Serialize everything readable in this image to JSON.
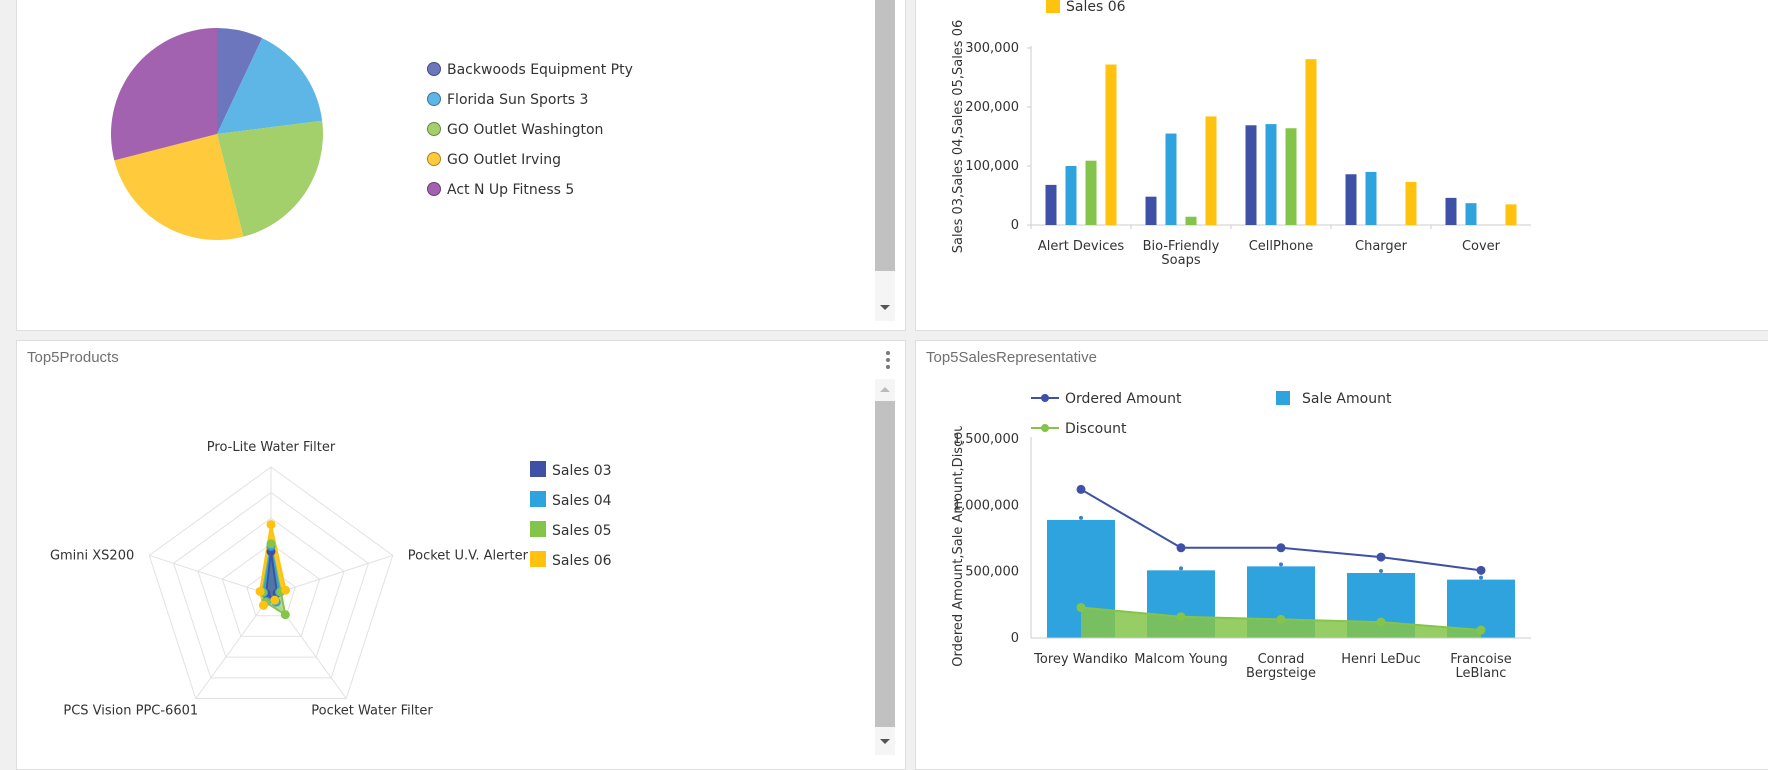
{
  "colors": {
    "sales03": "#3f51a6",
    "sales04": "#2fa3dd",
    "sales05": "#84c44a",
    "sales06": "#ffc20e",
    "pie": [
      "#6b76bd",
      "#5db6e6",
      "#a3d06a",
      "#ffcb3d",
      "#a262b0"
    ]
  },
  "pie_panel": {
    "legend": [
      {
        "label": "Backwoods Equipment Pty",
        "color": "#6b76bd"
      },
      {
        "label": "Florida Sun Sports 3",
        "color": "#5db6e6"
      },
      {
        "label": "GO Outlet Washington",
        "color": "#a3d06a"
      },
      {
        "label": "GO Outlet Irving",
        "color": "#ffcb3d"
      },
      {
        "label": "Act N Up Fitness 5",
        "color": "#a262b0"
      }
    ]
  },
  "bar_panel": {
    "legend_partial": "Sales 06"
  },
  "radar_panel": {
    "title": "Top5Products",
    "legend": [
      "Sales 03",
      "Sales 04",
      "Sales 05",
      "Sales 06"
    ]
  },
  "combo_panel": {
    "title": "Top5SalesRepresentative",
    "legend": [
      "Ordered Amount",
      "Sale Amount",
      "Discount"
    ]
  },
  "chart_data": [
    {
      "type": "pie",
      "categories": [
        "Backwoods Equipment Pty",
        "Florida Sun Sports 3",
        "GO Outlet Washington",
        "GO Outlet Irving",
        "Act N Up Fitness 5"
      ],
      "values": [
        7,
        16,
        23,
        25,
        29
      ],
      "legend_position": "right"
    },
    {
      "type": "bar",
      "categories": [
        "Alert Devices",
        "Bio-Friendly Soaps",
        "CellPhone",
        "Charger",
        "Cover"
      ],
      "series": [
        {
          "name": "Sales 03",
          "values": [
            68000,
            48000,
            169000,
            86000,
            46000
          ]
        },
        {
          "name": "Sales 04",
          "values": [
            100000,
            155000,
            171000,
            90000,
            37000
          ]
        },
        {
          "name": "Sales 05",
          "values": [
            109000,
            14000,
            164000,
            0,
            0
          ]
        },
        {
          "name": "Sales 06",
          "values": [
            272000,
            184000,
            281000,
            73000,
            35000
          ]
        }
      ],
      "ylabel": "Sales 03,Sales 04,Sales 05,Sales 06",
      "ylim": [
        0,
        300000
      ],
      "yticks": [
        "0",
        "100,000",
        "200,000",
        "300,000"
      ],
      "legend_position": "top"
    },
    {
      "type": "radar",
      "categories": [
        "Pro-Lite Water Filter",
        "Pocket U.V. Alerter",
        "Pocket Water Filter",
        "PCS Vision PPC-6601",
        "Gmini XS200"
      ],
      "series": [
        {
          "name": "Sales 03",
          "values": [
            0.34,
            0.05,
            0.06,
            0.04,
            0.04
          ]
        },
        {
          "name": "Sales 04",
          "values": [
            0.38,
            0.07,
            0.07,
            0.06,
            0.06
          ]
        },
        {
          "name": "Sales 05",
          "values": [
            0.4,
            0.08,
            0.19,
            0.07,
            0.07
          ]
        },
        {
          "name": "Sales 06",
          "values": [
            0.55,
            0.12,
            0.05,
            0.1,
            0.09
          ]
        }
      ],
      "legend_position": "right"
    },
    {
      "type": "bar",
      "categories": [
        "Torey Wandiko",
        "Malcom Young",
        "Conrad Bergsteige",
        "Henri LeDuc",
        "Francoise LeBlanc"
      ],
      "series": [
        {
          "name": "Sale Amount",
          "kind": "bar",
          "values": [
            890000,
            510000,
            540000,
            490000,
            440000
          ]
        },
        {
          "name": "Ordered Amount",
          "kind": "line",
          "values": [
            1120000,
            680000,
            680000,
            610000,
            510000
          ]
        },
        {
          "name": "Discount",
          "kind": "area",
          "values": [
            230000,
            160000,
            140000,
            120000,
            60000
          ]
        }
      ],
      "ylabel": "Ordered Amount,Sale Amount,Discount",
      "ylim": [
        0,
        1500000
      ],
      "yticks": [
        "0",
        "500,000",
        "1,000,000",
        "1,500,000"
      ],
      "legend_position": "top"
    }
  ]
}
